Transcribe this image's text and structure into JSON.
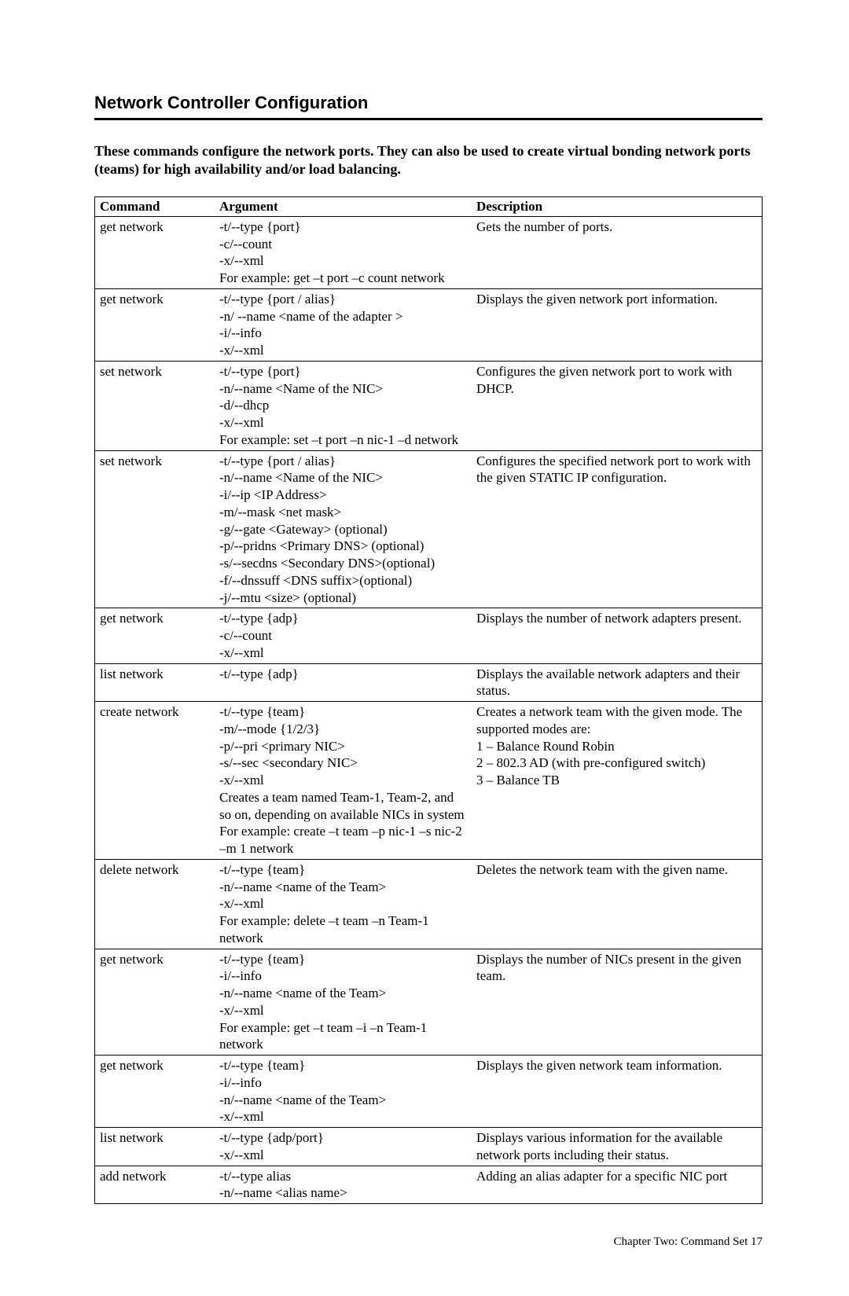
{
  "title": "Network Controller Configuration",
  "intro": "These commands configure the network ports. They can also be used to create virtual bonding network ports (teams) for high availability and/or load balancing.",
  "headers": {
    "cmd": "Command",
    "arg": "Argument",
    "desc": "Description"
  },
  "rows": [
    {
      "cmd": "get network",
      "args": [
        "-t/--type {port}",
        "-c/--count",
        "-x/--xml",
        "For example: get –t port –c count network"
      ],
      "desc": "Gets the number of ports."
    },
    {
      "cmd": "get network",
      "args": [
        "-t/--type {port / alias}",
        "-n/ --name <name of the adapter >",
        "-i/--info",
        "-x/--xml"
      ],
      "desc": "Displays the given network port information."
    },
    {
      "cmd": "set network",
      "args": [
        "-t/--type {port}",
        "-n/--name <Name of the NIC>",
        "-d/--dhcp",
        "-x/--xml",
        "For example: set –t port –n nic-1 –d network"
      ],
      "desc": "Configures the given network port to work with DHCP."
    },
    {
      "cmd": "set network",
      "args": [
        "-t/--type {port / alias}",
        "-n/--name <Name of the NIC>",
        "-i/--ip <IP Address>",
        "-m/--mask <net mask>",
        "-g/--gate <Gateway> (optional)",
        "-p/--pridns <Primary DNS> (optional)",
        "-s/--secdns <Secondary DNS>(optional)",
        "-f/--dnssuff <DNS suffix>(optional)",
        "-j/--mtu <size> (optional)"
      ],
      "desc": "Configures the specified network port to work with the given STATIC IP configuration."
    },
    {
      "cmd": "get network",
      "args": [
        "-t/--type {adp}",
        "-c/--count",
        "-x/--xml"
      ],
      "desc": "Displays the number of network adapters present."
    },
    {
      "cmd": "list network",
      "args": [
        "-t/--type {adp}"
      ],
      "desc": "Displays the available network adapters and their status."
    },
    {
      "cmd": "create network",
      "args": [
        "-t/--type {team}",
        "-m/--mode {1/2/3}",
        "-p/--pri <primary NIC>",
        "-s/--sec <secondary NIC>",
        "-x/--xml",
        "Creates a team named Team-1, Team-2, and so on, depending on available NICs in system",
        "For example: create –t team –p nic-1 –s nic-2 –m 1 network"
      ],
      "desc": "Creates a network team with the given mode. The supported modes are:\n1 – Balance Round Robin\n2 – 802.3 AD (with pre-configured switch)\n3 – Balance TB"
    },
    {
      "cmd": "delete network",
      "args": [
        "-t/--type {team}",
        "-n/--name <name of the Team>",
        "-x/--xml",
        "For example: delete –t team –n Team-1 network"
      ],
      "desc": "Deletes the network team with the given name."
    },
    {
      "cmd": "get network",
      "args": [
        "-t/--type {team}",
        "-i/--info",
        "-n/--name <name of the Team>",
        "-x/--xml",
        "For example: get –t team –i –n Team-1 network"
      ],
      "desc": "Displays the number of NICs present in the given team."
    },
    {
      "cmd": "get network",
      "args": [
        "-t/--type {team}",
        "-i/--info",
        "-n/--name <name of the Team>",
        "-x/--xml"
      ],
      "desc": "Displays the given network team information."
    },
    {
      "cmd": "list network",
      "args": [
        "-t/--type {adp/port}",
        "-x/--xml"
      ],
      "desc": "Displays various information for the available network ports including their status."
    },
    {
      "cmd": "add network",
      "args": [
        "-t/--type alias",
        "-n/--name <alias name>"
      ],
      "desc": "Adding an alias adapter for a specific NIC port"
    }
  ],
  "footer": "Chapter Two: Command Set    17"
}
